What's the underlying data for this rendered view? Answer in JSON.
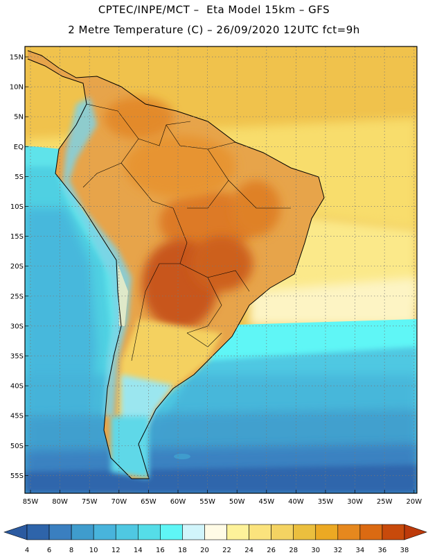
{
  "title_line1": "CPTEC/INPE/MCT –  Eta Model 15km – GFS",
  "title_line2": "2 Metre Temperature (C) – 26/09/2020 12UTC fct=9h",
  "map": {
    "lat_labels": [
      "15N",
      "10N",
      "5N",
      "EQ",
      "5S",
      "10S",
      "15S",
      "20S",
      "25S",
      "30S",
      "35S",
      "40S",
      "45S",
      "50S",
      "55S"
    ],
    "lon_labels": [
      "85W",
      "80W",
      "75W",
      "70W",
      "65W",
      "60W",
      "55W",
      "50W",
      "45W",
      "40W",
      "35W",
      "30W",
      "25W",
      "20W"
    ]
  },
  "colorbar": {
    "ticks": [
      "4",
      "6",
      "8",
      "10",
      "12",
      "14",
      "16",
      "18",
      "20",
      "22",
      "24",
      "26",
      "28",
      "30",
      "32",
      "34",
      "36",
      "38"
    ],
    "colors": [
      "#2e64aa",
      "#3a7fc0",
      "#3f9ccd",
      "#48b4dc",
      "#4fc8e2",
      "#55dde8",
      "#5ff6f6",
      "#d1f5fb",
      "#fffbe6",
      "#fdf29a",
      "#fbe37d",
      "#f4d362",
      "#ebbf3e",
      "#eca923",
      "#e6881e",
      "#db6a12",
      "#c84a0b"
    ],
    "under_color": "#2b5aa0",
    "over_color": "#bd3a0a"
  }
}
